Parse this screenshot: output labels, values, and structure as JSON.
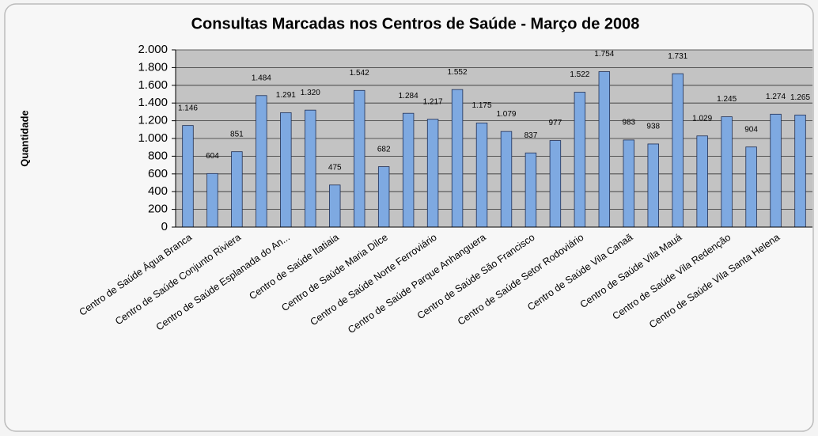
{
  "chart_data": {
    "type": "bar",
    "title": "Consultas Marcadas nos Centros de Saúde - Março de 2008",
    "y_label": "Quantidade",
    "categories": [
      "Centro de Saúde Água Branca",
      null,
      "Centro de Saúde Conjunto Riviera",
      null,
      "Centro de Saúde Esplanada do An...",
      null,
      "Centro de Saúde Itatiaia",
      null,
      "Centro de Saúde Maria Dilce",
      null,
      "Centro de Saúde Norte Ferroviário",
      null,
      "Centro de Saúde Parque Anhanguera",
      null,
      "Centro de Saúde São Francisco",
      null,
      "Centro de Saúde Setor Rodoviário",
      null,
      "Centro de Saúde Vila Canaã",
      null,
      "Centro de Saúde Vila Mauá",
      null,
      "Centro de Saúde Vila Redenção",
      null,
      "Centro de Saúde Vila Santa Helena",
      null
    ],
    "values": [
      1146,
      604,
      851,
      1484,
      1291,
      1320,
      475,
      1542,
      682,
      1284,
      1217,
      1552,
      1175,
      1079,
      837,
      977,
      1522,
      1754,
      983,
      938,
      1731,
      1029,
      1245,
      904,
      1274,
      1265
    ],
    "value_labels": [
      "1.146",
      "604",
      "851",
      "1.484",
      "1.291",
      "1.320",
      "475",
      "1.542",
      "682",
      "1.284",
      "1.217",
      "1.552",
      "1.175",
      "1.079",
      "837",
      "977",
      "1.522",
      "1.754",
      "983",
      "938",
      "1.731",
      "1.029",
      "1.245",
      "904",
      "1.274",
      "1.265"
    ],
    "color": "#7ea9e1",
    "ylim": [
      0,
      2000
    ],
    "yticks": [
      0,
      200,
      400,
      600,
      800,
      {
        "value": 1000,
        "label": "1.000"
      },
      {
        "value": 1200,
        "label": "1.200"
      },
      {
        "value": 1400,
        "label": "1.400"
      },
      {
        "value": 1600,
        "label": "1.600"
      },
      {
        "value": 1800,
        "label": "1.800"
      },
      {
        "value": 2000,
        "label": "2.000"
      }
    ],
    "grid": true
  }
}
